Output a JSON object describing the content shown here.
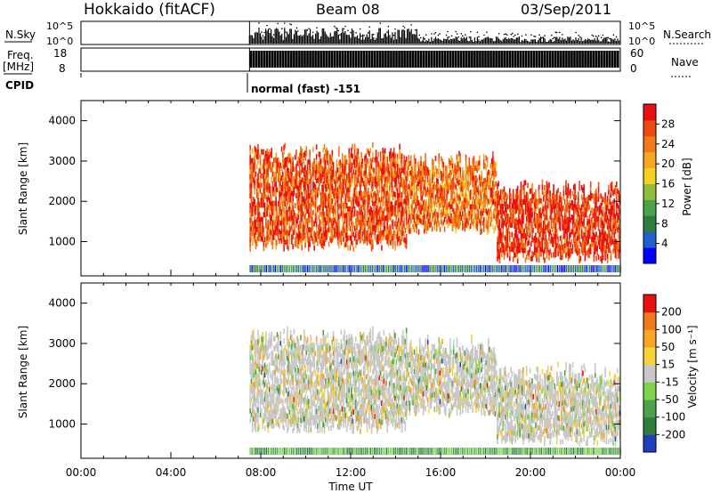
{
  "header": {
    "station": "Hokkaido (fitACF)",
    "beam": "Beam 08",
    "date": "03/Sep/2011"
  },
  "top_panels": {
    "nsky_label": "N.Sky",
    "nsky_ticks": [
      "10^5",
      "10^0"
    ],
    "nsky_right_ticks": [
      "10^5",
      "10^0"
    ],
    "nsearch_label": "N.Search",
    "freq_label": "Freq.",
    "freq_unit": "[MHz]",
    "freq_ticks": [
      "18",
      "8"
    ],
    "nave_ticks": [
      "60",
      "0"
    ],
    "nave_label": "Nave",
    "cpid_label": "CPID",
    "cpid_text": "normal (fast) -151"
  },
  "x_axis": {
    "label": "Time UT",
    "ticks": [
      "00:00",
      "04:00",
      "08:00",
      "12:00",
      "16:00",
      "20:00",
      "00:00"
    ]
  },
  "power_panel": {
    "ylabel": "Slant Range [km]",
    "yticks": [
      "4000",
      "3000",
      "2000",
      "1000"
    ],
    "colorbar_label": "Power [dB]",
    "colorbar_ticks": [
      "28",
      "24",
      "20",
      "16",
      "12",
      "8",
      "4"
    ],
    "colors": [
      "#0000ff",
      "#1f5fd0",
      "#2e7d3c",
      "#4aa34a",
      "#8fbf3a",
      "#f2d21f",
      "#f5a623",
      "#f07a1a",
      "#ee4a12",
      "#e81010"
    ]
  },
  "velocity_panel": {
    "ylabel": "Slant Range [km]",
    "yticks": [
      "4000",
      "3000",
      "2000",
      "1000"
    ],
    "colorbar_label": "Velocity [m s⁻¹]",
    "colorbar_ticks": [
      "200",
      "100",
      "50",
      "15",
      "-15",
      "-50",
      "-100",
      "-200"
    ],
    "colors": [
      "#1f3fbf",
      "#2e7d3c",
      "#4aa34a",
      "#7fd34a",
      "#c8c8c8",
      "#f5d43a",
      "#f5a623",
      "#f07a1a",
      "#e81010"
    ]
  },
  "chart_data": [
    {
      "type": "heatmap",
      "title": "Beam 08",
      "xlabel": "Time UT",
      "ylabel": "Slant Range [km]",
      "xlim": [
        0,
        24
      ],
      "ylim": [
        150,
        4500
      ],
      "colorbar": "Power [dB]",
      "clim": [
        0,
        30
      ],
      "data_start_hour": 7.5,
      "bands": [
        {
          "t_start": 7.5,
          "t_end": 14.5,
          "range_low": 900,
          "range_high": 3100,
          "power_db": 24
        },
        {
          "t_start": 14.5,
          "t_end": 18.5,
          "range_low": 1300,
          "range_high": 2900,
          "power_db": 22
        },
        {
          "t_start": 18.5,
          "t_end": 24,
          "range_low": 600,
          "range_high": 2200,
          "power_db": 26
        }
      ]
    },
    {
      "type": "heatmap",
      "title": "Beam 08",
      "xlabel": "Time UT",
      "ylabel": "Slant Range [km]",
      "xlim": [
        0,
        24
      ],
      "ylim": [
        150,
        4500
      ],
      "colorbar": "Velocity [m s^-1]",
      "clim": [
        -200,
        200
      ],
      "data_start_hour": 7.5,
      "bands": [
        {
          "t_start": 7.5,
          "t_end": 14.5,
          "range_low": 900,
          "range_high": 3100,
          "velocity": 0
        },
        {
          "t_start": 14.5,
          "t_end": 18.5,
          "range_low": 1300,
          "range_high": 2900,
          "velocity": 20
        },
        {
          "t_start": 18.5,
          "t_end": 24,
          "range_low": 600,
          "range_high": 2200,
          "velocity": -10
        }
      ]
    }
  ]
}
